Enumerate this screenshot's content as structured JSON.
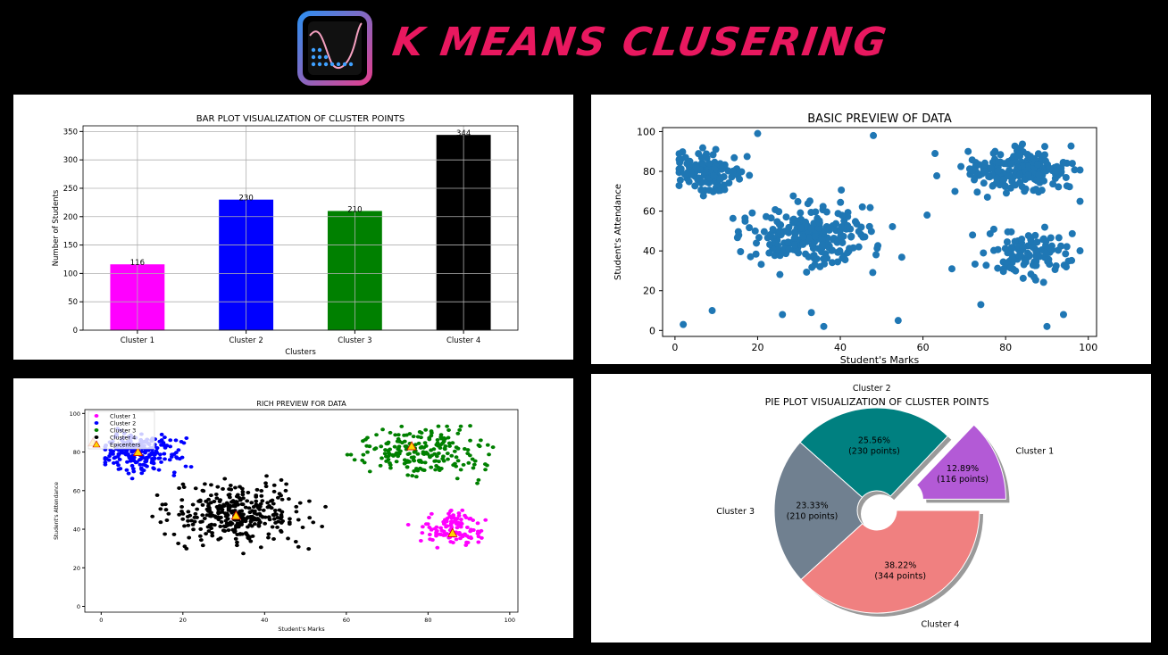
{
  "header": {
    "title": "K MEANS CLUSERING",
    "logo_icon": "chart-curve-logo-icon"
  },
  "colors": {
    "title": "#e8185f",
    "cluster1": "#ff00ff",
    "cluster2": "#0000ff",
    "cluster3": "#008000",
    "cluster4": "#000000",
    "basic_points": "#1f77b4",
    "pie_cluster1": "#b35ad6",
    "pie_cluster2": "#008080",
    "pie_cluster3": "#708090",
    "pie_cluster4": "#f08080"
  },
  "chart_data": [
    {
      "id": "bar",
      "type": "bar",
      "title": "BAR PLOT VISUALIZATION OF CLUSTER POINTS",
      "xlabel": "Clusters",
      "ylabel": "Number of Students",
      "categories": [
        "Cluster 1",
        "Cluster 2",
        "Cluster 3",
        "Cluster 4"
      ],
      "values": [
        116,
        230,
        210,
        344
      ],
      "value_labels": [
        "116",
        "230",
        "210",
        "344"
      ],
      "ylim": [
        0,
        360
      ],
      "yticks": [
        0,
        50,
        100,
        150,
        200,
        250,
        300,
        350
      ],
      "grid": true
    },
    {
      "id": "basic",
      "type": "scatter",
      "title": "BASIC PREVIEW OF DATA",
      "xlabel": "Student's Marks",
      "ylabel": "Student's Attendance",
      "xlim": [
        -3,
        102
      ],
      "ylim": [
        -3,
        102
      ],
      "xticks": [
        0,
        20,
        40,
        60,
        80,
        100
      ],
      "yticks": [
        0,
        20,
        40,
        60,
        80,
        100
      ],
      "clusters": [
        {
          "center": [
            8,
            80
          ],
          "spread": [
            6,
            7
          ],
          "count": 116
        },
        {
          "center": [
            33,
            48
          ],
          "spread": [
            11,
            11
          ],
          "count": 230
        },
        {
          "center": [
            82,
            80
          ],
          "spread": [
            10,
            8
          ],
          "count": 210
        },
        {
          "center": [
            85,
            38
          ],
          "spread": [
            7,
            8
          ],
          "count": 110
        }
      ],
      "outliers": [
        [
          2,
          3
        ],
        [
          9,
          10
        ],
        [
          26,
          8
        ],
        [
          33,
          9
        ],
        [
          36,
          2
        ],
        [
          54,
          5
        ],
        [
          74,
          13
        ],
        [
          90,
          2
        ],
        [
          94,
          8
        ],
        [
          67,
          31
        ],
        [
          61,
          58
        ],
        [
          72,
          48
        ],
        [
          48,
          98
        ],
        [
          20,
          99
        ]
      ]
    },
    {
      "id": "rich",
      "type": "scatter",
      "title": "RICH PREVIEW FOR DATA",
      "xlabel": "Student's Marks",
      "ylabel": "Student's Attendance",
      "xlim": [
        -4,
        102
      ],
      "ylim": [
        -3,
        102
      ],
      "xticks": [
        0,
        20,
        40,
        60,
        80,
        100
      ],
      "yticks": [
        0,
        20,
        40,
        60,
        80,
        100
      ],
      "legend": [
        "Cluster 1",
        "Cluster 2",
        "Cluster 3",
        "Cluster 4",
        "Epicenters"
      ],
      "legend_position": "top-left",
      "series": [
        {
          "name": "Cluster 1",
          "center": [
            86,
            40
          ],
          "spread": [
            5,
            6
          ],
          "count": 116
        },
        {
          "name": "Cluster 2",
          "center": [
            9,
            80
          ],
          "spread": [
            7,
            7
          ],
          "count": 230
        },
        {
          "name": "Cluster 3",
          "center": [
            79,
            80
          ],
          "spread": [
            10,
            8
          ],
          "count": 210
        },
        {
          "name": "Cluster 4",
          "center": [
            33,
            48
          ],
          "spread": [
            11,
            10
          ],
          "count": 344
        }
      ],
      "epicenters": [
        [
          86,
          38
        ],
        [
          9,
          80
        ],
        [
          76,
          83
        ],
        [
          33,
          47
        ],
        [
          -2,
          85
        ]
      ]
    },
    {
      "id": "pie",
      "type": "pie",
      "title": "PIE PLOT VISUALIZATION OF CLUSTER POINTS",
      "labels": [
        "Cluster 1",
        "Cluster 2",
        "Cluster 3",
        "Cluster 4"
      ],
      "values": [
        116,
        230,
        210,
        344
      ],
      "percent_labels": [
        "12.89%",
        "25.56%",
        "23.33%",
        "38.22%"
      ],
      "point_labels": [
        "(116 points)",
        "(230 points)",
        "(210 points)",
        "(344 points)"
      ],
      "explode": "Cluster 1",
      "donut": true
    }
  ]
}
